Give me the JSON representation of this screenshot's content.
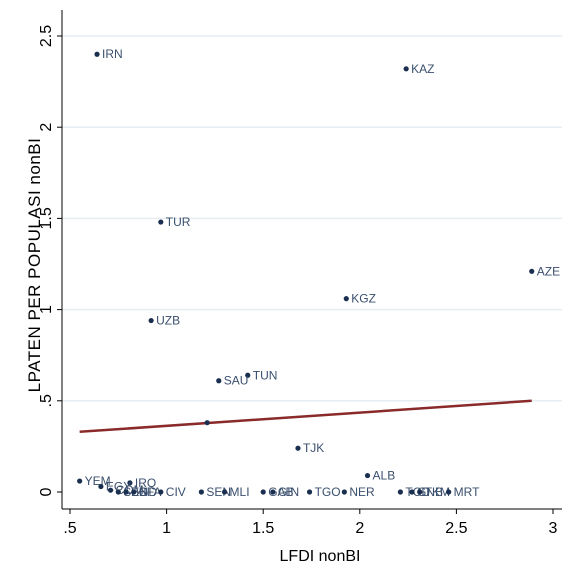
{
  "chart_data": {
    "type": "scatter",
    "title": "",
    "xlabel": "LFDI nonBI",
    "ylabel": "LPATEN PER POPULASI nonBI",
    "xlim": [
      0.5,
      3.0
    ],
    "ylim": [
      0.0,
      2.5
    ],
    "x_ticks": [
      {
        "value": 0.5,
        "label": ".5"
      },
      {
        "value": 1.0,
        "label": "1"
      },
      {
        "value": 1.5,
        "label": "1.5"
      },
      {
        "value": 2.0,
        "label": "2"
      },
      {
        "value": 2.5,
        "label": "2.5"
      },
      {
        "value": 3.0,
        "label": "3"
      }
    ],
    "y_ticks": [
      {
        "value": 0.0,
        "label": "0"
      },
      {
        "value": 0.5,
        "label": ".5"
      },
      {
        "value": 1.0,
        "label": "1"
      },
      {
        "value": 1.5,
        "label": "1.5"
      },
      {
        "value": 2.0,
        "label": "2"
      },
      {
        "value": 2.5,
        "label": "2.5"
      }
    ],
    "grid": true,
    "colors": {
      "marker": "#1a2f4f",
      "fit_line": "#8b2a2a",
      "grid": "#e6eef2",
      "axis": "#000000"
    },
    "points": [
      {
        "label": "IRN",
        "x": 0.64,
        "y": 2.4
      },
      {
        "label": "KAZ",
        "x": 2.24,
        "y": 2.32
      },
      {
        "label": "TUR",
        "x": 0.97,
        "y": 1.48
      },
      {
        "label": "AZE",
        "x": 2.89,
        "y": 1.21
      },
      {
        "label": "KGZ",
        "x": 1.93,
        "y": 1.06
      },
      {
        "label": "UZB",
        "x": 0.92,
        "y": 0.94
      },
      {
        "label": "TUN",
        "x": 1.42,
        "y": 0.64
      },
      {
        "label": "SAU",
        "x": 1.27,
        "y": 0.61
      },
      {
        "label": "",
        "x": 1.21,
        "y": 0.38
      },
      {
        "label": "TJK",
        "x": 1.68,
        "y": 0.24
      },
      {
        "label": "ALB",
        "x": 2.04,
        "y": 0.09
      },
      {
        "label": "YEM",
        "x": 0.55,
        "y": 0.06
      },
      {
        "label": "IRQ",
        "x": 0.81,
        "y": 0.05
      },
      {
        "label": "EGY",
        "x": 0.66,
        "y": 0.03
      },
      {
        "label": "COM",
        "x": 0.71,
        "y": 0.01
      },
      {
        "label": "SEN",
        "x": 0.75,
        "y": 0.0
      },
      {
        "label": "BGD",
        "x": 0.79,
        "y": 0.0
      },
      {
        "label": "BFA",
        "x": 0.83,
        "y": 0.0
      },
      {
        "label": "CIV",
        "x": 0.97,
        "y": 0.0
      },
      {
        "label": "SEN",
        "x": 1.18,
        "y": 0.0
      },
      {
        "label": "MLI",
        "x": 1.3,
        "y": 0.0
      },
      {
        "label": "GAB",
        "x": 1.5,
        "y": 0.0
      },
      {
        "label": "GIN",
        "x": 1.55,
        "y": 0.0
      },
      {
        "label": "TGO",
        "x": 1.74,
        "y": 0.0
      },
      {
        "label": "NER",
        "x": 1.92,
        "y": 0.0
      },
      {
        "label": "TCD",
        "x": 2.21,
        "y": 0.0
      },
      {
        "label": "GNB",
        "x": 2.27,
        "y": 0.0
      },
      {
        "label": "TKM",
        "x": 2.31,
        "y": 0.0
      },
      {
        "label": "MRT",
        "x": 2.46,
        "y": 0.0
      }
    ],
    "fit_line": {
      "x": [
        0.55,
        2.89
      ],
      "y": [
        0.33,
        0.5
      ]
    }
  }
}
